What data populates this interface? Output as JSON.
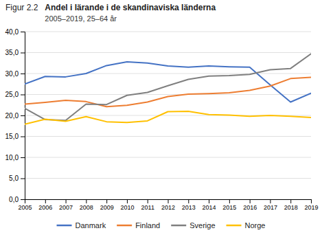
{
  "chart_data": {
    "type": "line",
    "title": "Andel i lärande i de skandinaviska länderna",
    "subtitle": "2005–2019, 25–64 år",
    "annotations": [
      "Figur 2.2"
    ],
    "x": [
      2005,
      2006,
      2007,
      2008,
      2009,
      2010,
      2011,
      2012,
      2013,
      2014,
      2015,
      2016,
      2017,
      2018,
      2019
    ],
    "series": [
      {
        "name": "Danmark",
        "color": "#4472C4",
        "values": [
          27.5,
          29.3,
          29.2,
          30.0,
          31.9,
          32.8,
          32.5,
          31.8,
          31.5,
          31.8,
          31.6,
          31.5,
          27.3,
          23.2,
          25.3
        ]
      },
      {
        "name": "Finland",
        "color": "#ED7D31",
        "values": [
          22.7,
          23.1,
          23.6,
          23.3,
          22.1,
          22.4,
          23.2,
          24.5,
          25.1,
          25.2,
          25.4,
          26.0,
          27.0,
          28.8,
          29.1
        ]
      },
      {
        "name": "Sverige",
        "color": "#7F7F7F",
        "values": [
          21.7,
          19.0,
          18.8,
          22.7,
          22.6,
          24.8,
          25.5,
          27.1,
          28.6,
          29.4,
          29.5,
          29.8,
          30.9,
          31.2,
          34.7
        ]
      },
      {
        "name": "Norge",
        "color": "#FFC000",
        "values": [
          17.9,
          19.1,
          18.6,
          19.7,
          18.5,
          18.3,
          18.7,
          20.9,
          21.0,
          20.2,
          20.1,
          19.8,
          20.0,
          19.8,
          19.5
        ]
      }
    ],
    "xlim": [
      2005,
      2019
    ],
    "xticks": [
      2005,
      2006,
      2007,
      2008,
      2009,
      2010,
      2011,
      2012,
      2013,
      2014,
      2015,
      2016,
      2017,
      2018,
      2019
    ],
    "ylim": [
      0,
      40
    ],
    "yticks": [
      {
        "value": 0,
        "label": "0,0"
      },
      {
        "value": 5,
        "label": "5,0"
      },
      {
        "value": 10,
        "label": "10,0"
      },
      {
        "value": 15,
        "label": "15,0"
      },
      {
        "value": 20,
        "label": "20,0"
      },
      {
        "value": 25,
        "label": "25,0"
      },
      {
        "value": 30,
        "label": "30,0"
      },
      {
        "value": 35,
        "label": "35,0"
      },
      {
        "value": 40,
        "label": "40,0"
      }
    ],
    "grid": true,
    "legend": "bottom"
  }
}
